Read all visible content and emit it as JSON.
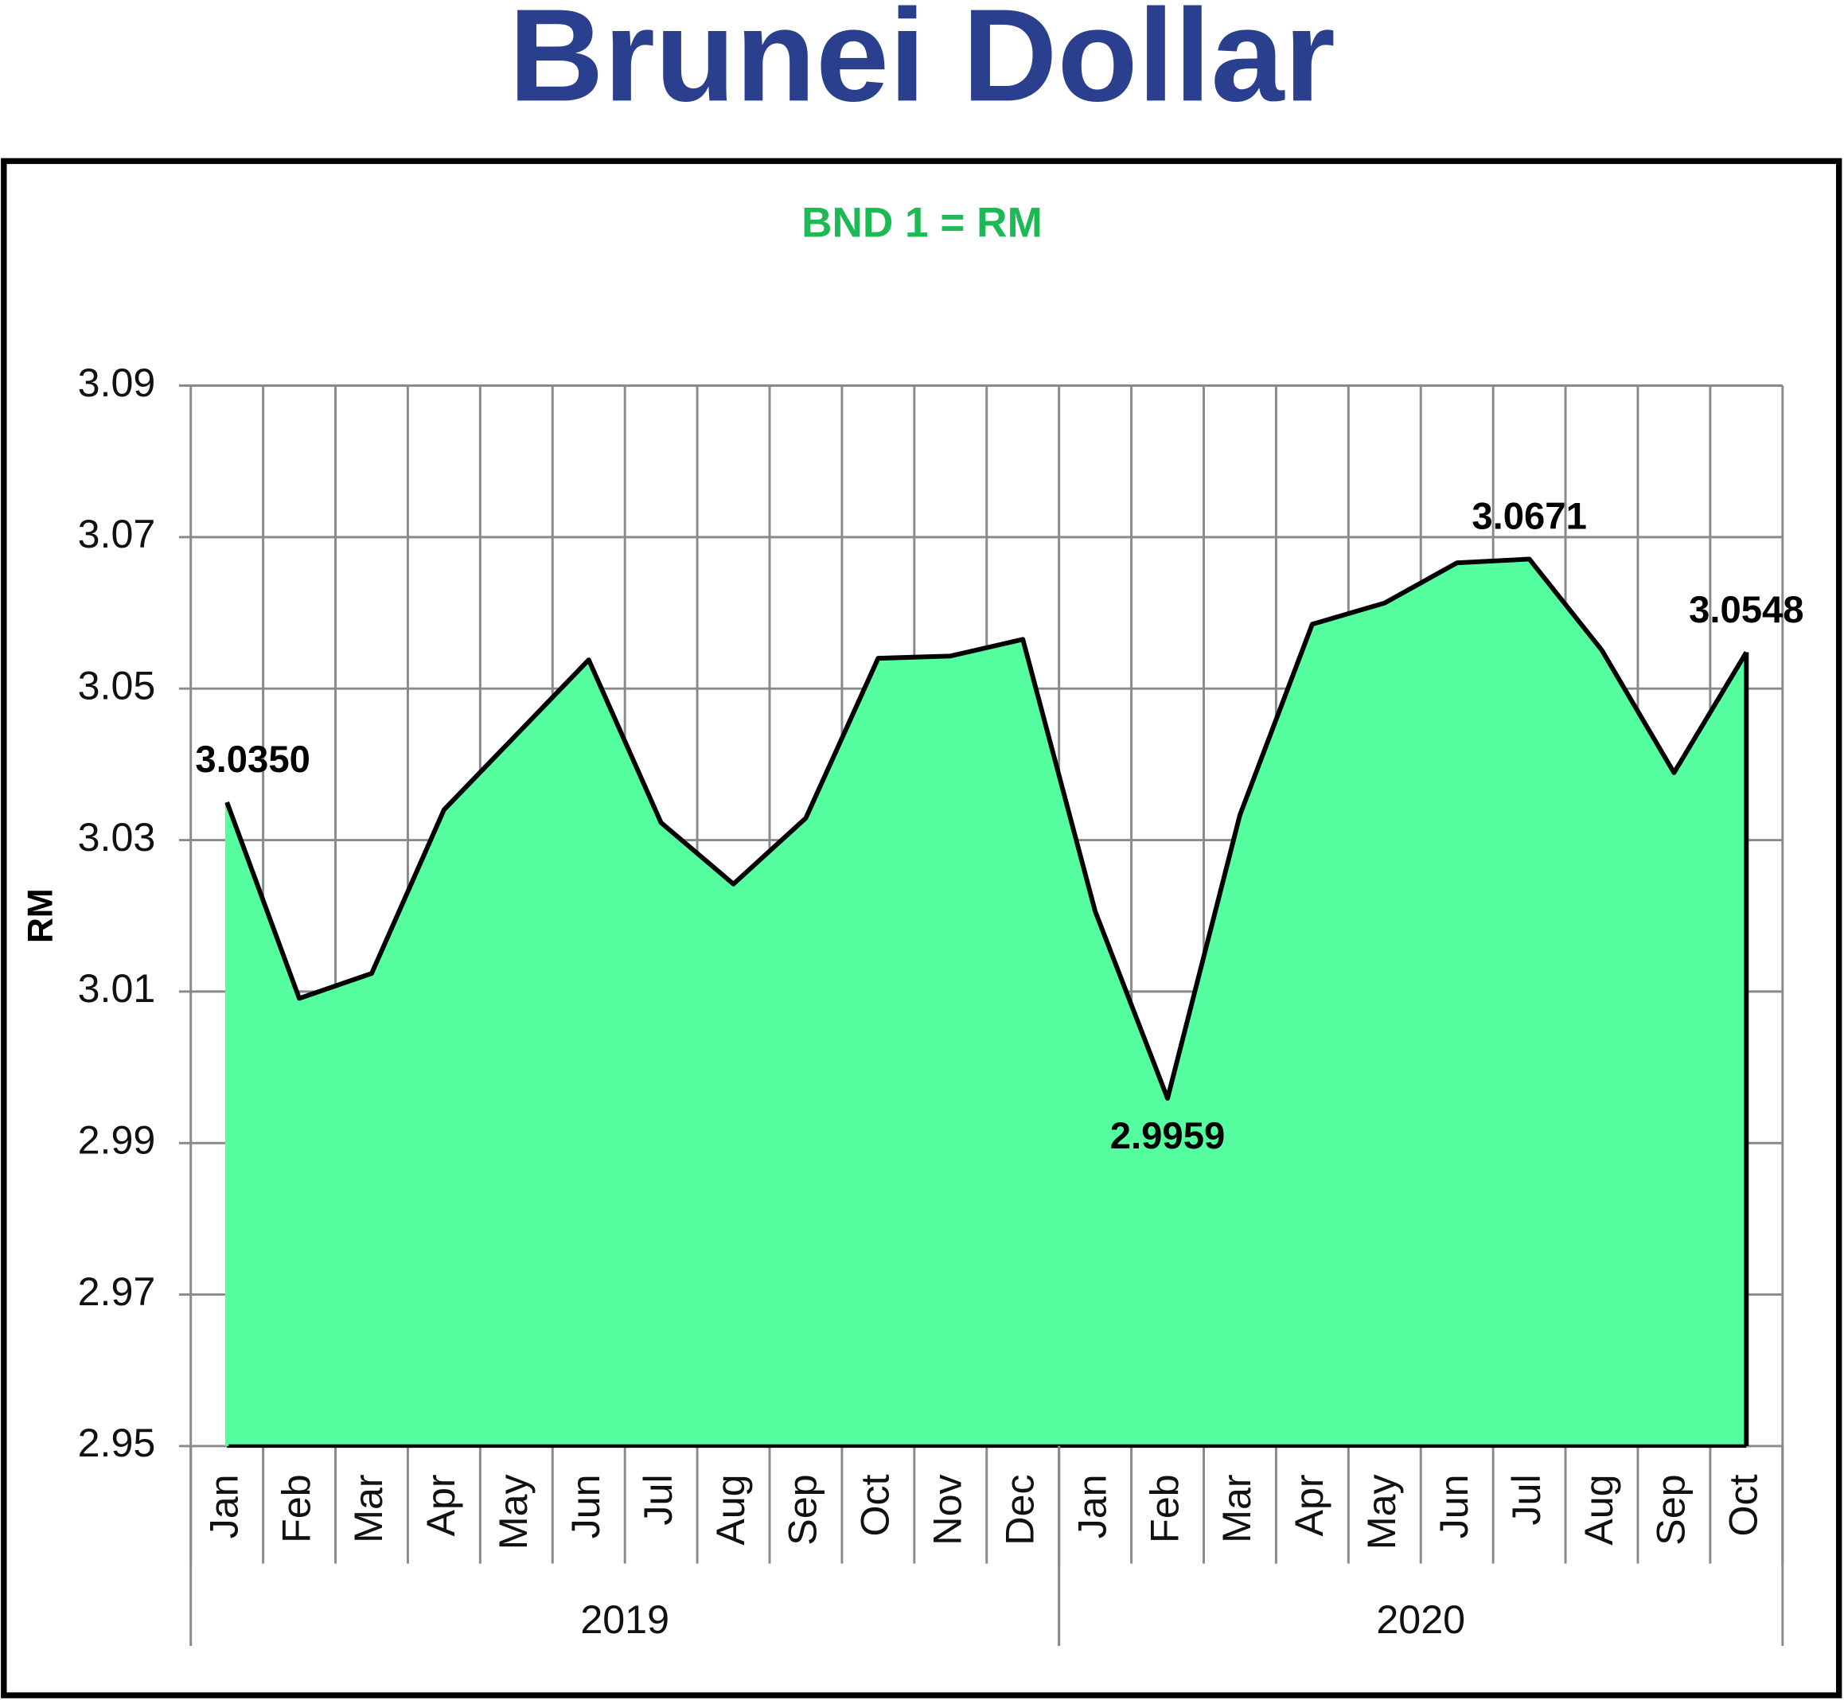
{
  "chart_data": {
    "type": "area",
    "title": "Brunei Dollar",
    "subtitle": "BND 1 = RM",
    "y_label": "RM",
    "groups": [
      {
        "name": "2019",
        "categories": [
          "Jan",
          "Feb",
          "Mar",
          "Apr",
          "May",
          "Jun",
          "Jul",
          "Aug",
          "Sep",
          "Oct",
          "Nov",
          "Dec"
        ]
      },
      {
        "name": "2020",
        "categories": [
          "Jan",
          "Feb",
          "Mar",
          "Apr",
          "May",
          "Jun",
          "Jul",
          "Aug",
          "Sep",
          "Oct"
        ]
      }
    ],
    "values": [
      3.035,
      3.0091,
      3.0124,
      3.034,
      3.0439,
      3.0538,
      3.0323,
      3.0242,
      3.0329,
      3.054,
      3.0543,
      3.0565,
      3.0206,
      2.9959,
      3.0333,
      3.0585,
      3.0613,
      3.0666,
      3.0671,
      3.0551,
      3.0389,
      3.0548
    ],
    "value_labels": [
      "3.0350",
      null,
      null,
      null,
      null,
      null,
      null,
      null,
      null,
      null,
      null,
      null,
      null,
      "2.9959",
      null,
      null,
      null,
      null,
      "3.0671",
      null,
      null,
      "3.0548"
    ],
    "color": "#55ff9f",
    "line_color": "#000000",
    "ylim": [
      2.95,
      3.09
    ],
    "yticks": [
      2.95,
      2.97,
      2.99,
      3.01,
      3.03,
      3.05,
      3.07,
      3.09
    ],
    "grid": true
  }
}
